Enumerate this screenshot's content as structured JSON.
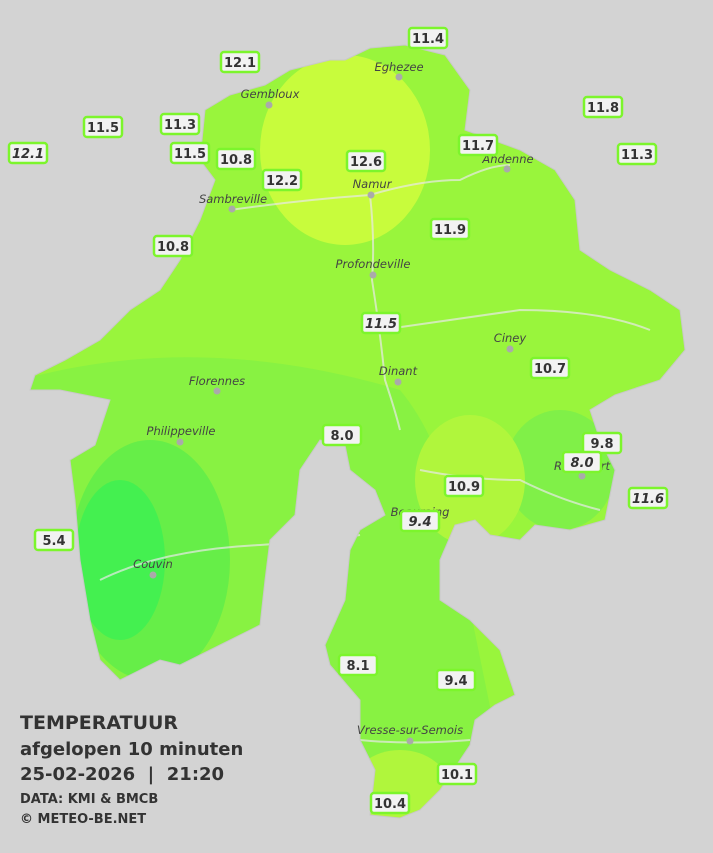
{
  "legend": {
    "title": "TEMPERATUUR",
    "subtitle": "afgelopen 10 minuten",
    "datetime": "25-02-2026  |  21:20",
    "source": "DATA: KMI & BMCB",
    "credit": "© METEO-BE.NET"
  },
  "cities": [
    "Eghezee",
    "Gembloux",
    "Andenne",
    "Namur",
    "Sambreville",
    "Profondeville",
    "Ciney",
    "Dinant",
    "Florennes",
    "Philippeville",
    "Beauraing",
    "Rochefort",
    "Couvin",
    "Vresse-sur-Semois"
  ],
  "readings": [
    11.4,
    12.1,
    11.8,
    11.5,
    11.3,
    12.1,
    11.5,
    10.8,
    12.6,
    11.7,
    11.3,
    12.2,
    11.9,
    10.8,
    11.5,
    10.7,
    {
      "value": 8,
      "label": "8.0"
    },
    9.8,
    {
      "value": 8,
      "label": "8.0"
    },
    10.9,
    11.6,
    9.4,
    5.4,
    8.1,
    9.4,
    10.1,
    10.4
  ]
}
